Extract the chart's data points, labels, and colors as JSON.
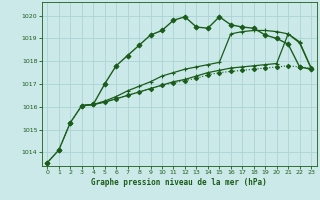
{
  "title": "Graphe pression niveau de la mer (hPa)",
  "bg_color": "#cce9e9",
  "grid_color": "#aad4d4",
  "line_color": "#1a5c1a",
  "xlim": [
    -0.5,
    23.5
  ],
  "ylim": [
    1013.4,
    1020.6
  ],
  "yticks": [
    1014,
    1015,
    1016,
    1017,
    1018,
    1019,
    1020
  ],
  "xticks": [
    0,
    1,
    2,
    3,
    4,
    5,
    6,
    7,
    8,
    9,
    10,
    11,
    12,
    13,
    14,
    15,
    16,
    17,
    18,
    19,
    20,
    21,
    22,
    23
  ],
  "series": [
    {
      "x": [
        0,
        1,
        2,
        3,
        4,
        5,
        6,
        7,
        8,
        9,
        10,
        11,
        12,
        13,
        14,
        15,
        16,
        17,
        18,
        19,
        20,
        21,
        22,
        23
      ],
      "y": [
        1013.55,
        1014.1,
        1015.3,
        1016.05,
        1016.1,
        1016.2,
        1016.35,
        1016.5,
        1016.65,
        1016.8,
        1016.95,
        1017.05,
        1017.15,
        1017.25,
        1017.4,
        1017.5,
        1017.55,
        1017.6,
        1017.65,
        1017.7,
        1017.75,
        1017.8,
        1017.75,
        1017.7
      ],
      "color": "#1a5c1a",
      "marker": "D",
      "markersize": 2.2,
      "lw": 0.8,
      "ls": ":"
    },
    {
      "x": [
        3,
        4,
        5,
        6,
        7,
        8,
        9,
        10,
        11,
        12,
        13,
        14,
        15,
        16,
        17,
        18,
        19,
        20,
        21,
        22,
        23
      ],
      "y": [
        1016.05,
        1016.1,
        1016.2,
        1016.35,
        1016.5,
        1016.65,
        1016.8,
        1016.95,
        1017.1,
        1017.2,
        1017.35,
        1017.5,
        1017.6,
        1017.7,
        1017.75,
        1017.8,
        1017.85,
        1017.9,
        1019.2,
        1018.8,
        1017.7
      ],
      "color": "#1a5c1a",
      "marker": "+",
      "markersize": 3.5,
      "lw": 0.9,
      "ls": "-"
    },
    {
      "x": [
        3,
        4,
        5,
        6,
        7,
        8,
        9,
        10,
        11,
        12,
        13,
        14,
        15,
        16,
        17,
        18,
        19,
        20,
        21,
        22,
        23
      ],
      "y": [
        1016.05,
        1016.1,
        1016.25,
        1016.45,
        1016.7,
        1016.9,
        1017.1,
        1017.35,
        1017.5,
        1017.65,
        1017.75,
        1017.85,
        1017.95,
        1019.2,
        1019.3,
        1019.35,
        1019.35,
        1019.3,
        1019.2,
        1018.85,
        1017.7
      ],
      "color": "#1a5c1a",
      "marker": "+",
      "markersize": 3.5,
      "lw": 0.9,
      "ls": "-"
    },
    {
      "x": [
        0,
        1,
        2,
        3,
        4,
        5,
        6,
        7,
        8,
        9,
        10,
        11,
        12,
        13,
        14,
        15,
        16,
        17,
        18,
        19,
        20,
        21,
        22,
        23
      ],
      "y": [
        1013.55,
        1014.1,
        1015.3,
        1016.05,
        1016.1,
        1017.0,
        1017.8,
        1018.25,
        1018.7,
        1019.15,
        1019.35,
        1019.8,
        1019.95,
        1019.5,
        1019.45,
        1019.95,
        1019.6,
        1019.5,
        1019.45,
        1019.15,
        1019.0,
        1018.75,
        1017.75,
        1017.65
      ],
      "color": "#1a5c1a",
      "marker": "D",
      "markersize": 2.5,
      "lw": 1.0,
      "ls": "-"
    }
  ]
}
